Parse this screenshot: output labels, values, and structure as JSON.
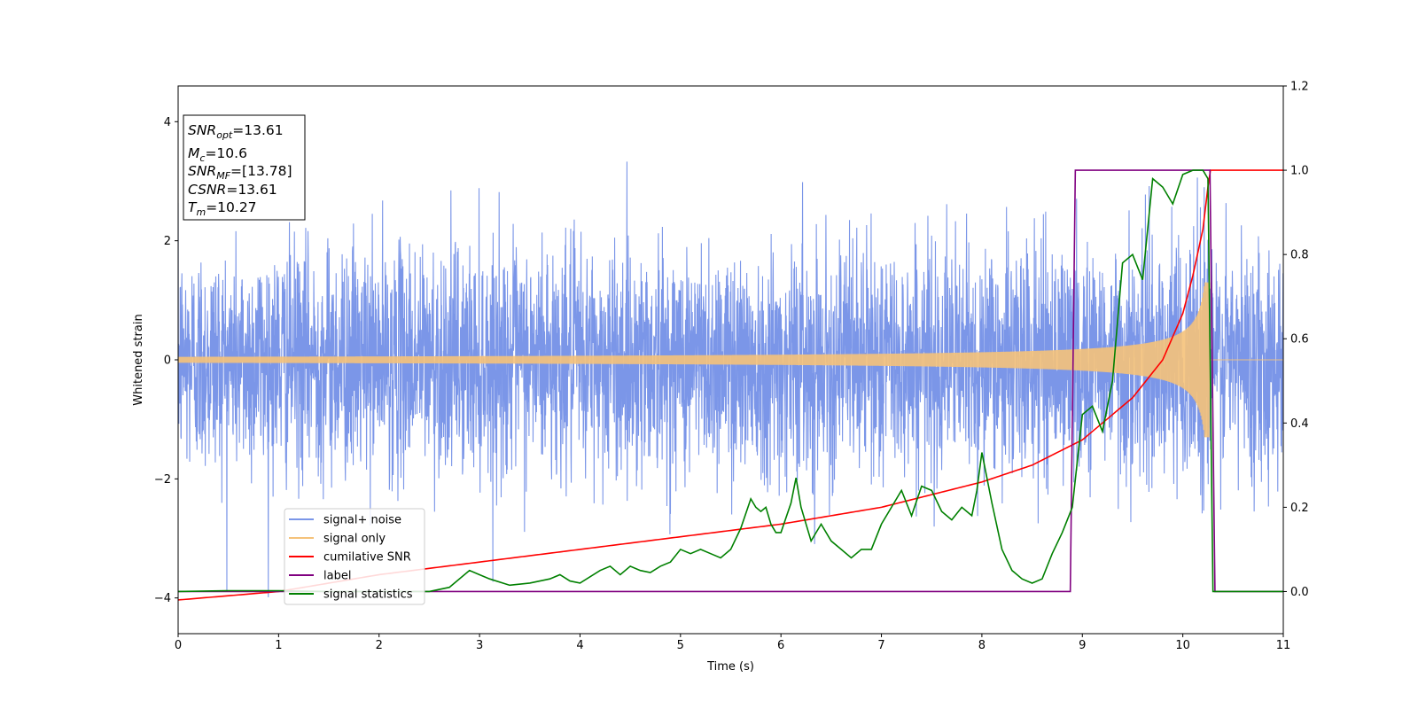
{
  "chart_data": {
    "type": "line",
    "xlabel": "Time (s)",
    "ylabel": "Whitened strain",
    "xlim": [
      0,
      11
    ],
    "ylim_left": [
      -4.6,
      4.6
    ],
    "ylim_right": [
      -0.1,
      1.2
    ],
    "x_ticks": [
      "0",
      "1",
      "2",
      "3",
      "4",
      "5",
      "6",
      "7",
      "8",
      "9",
      "10",
      "11"
    ],
    "y_left_ticks": [
      "−4",
      "−2",
      "0",
      "2",
      "4"
    ],
    "y_right_ticks": [
      "0.0",
      "0.2",
      "0.4",
      "0.6",
      "0.8",
      "1.0",
      "1.2"
    ],
    "grid": false,
    "legend_position": "lower-left",
    "annotation": {
      "lines": [
        {
          "base": "SNR",
          "sub": "opt",
          "value": "=13.61"
        },
        {
          "base": "M",
          "sub": "c",
          "value": "=10.6"
        },
        {
          "base": "SNR",
          "sub": "MF",
          "value": "=[13.78]"
        },
        {
          "base": "CSNR",
          "sub": "",
          "value": "=13.61"
        },
        {
          "base": "T",
          "sub": "m",
          "value": "=10.27"
        }
      ]
    },
    "series": [
      {
        "name": "signal+ noise",
        "axis": "left",
        "color": "#7b96e8",
        "description_values": {
          "noise_std": 1.0,
          "envelope_peak": 3.2,
          "x_range": [
            0,
            11
          ]
        }
      },
      {
        "name": "signal only",
        "axis": "left",
        "color": "#f5c27a",
        "chirp": {
          "t_merge": 10.27,
          "amp_start": 0.05,
          "amp_peak": 1.3
        }
      },
      {
        "name": "cumilative SNR",
        "axis": "right",
        "color": "#ff0000",
        "x": [
          0,
          1,
          2,
          3,
          4,
          5,
          6,
          7,
          8,
          8.5,
          9,
          9.5,
          9.8,
          10,
          10.1,
          10.2,
          10.27,
          10.3,
          11
        ],
        "values": [
          -0.02,
          0.0,
          0.04,
          0.07,
          0.1,
          0.13,
          0.16,
          0.2,
          0.26,
          0.3,
          0.36,
          0.46,
          0.55,
          0.66,
          0.75,
          0.86,
          1.0,
          1.0,
          1.0
        ]
      },
      {
        "name": "label",
        "axis": "right",
        "color": "#800080",
        "x": [
          0,
          8.88,
          8.93,
          10.27,
          10.32,
          11
        ],
        "values": [
          0,
          0,
          1,
          1,
          0,
          0
        ]
      },
      {
        "name": "signal statistics",
        "axis": "right",
        "color": "#008000",
        "x": [
          0,
          0.5,
          1,
          1.5,
          2,
          2.5,
          2.7,
          2.9,
          3.0,
          3.1,
          3.3,
          3.5,
          3.7,
          3.8,
          3.9,
          4.0,
          4.2,
          4.3,
          4.4,
          4.5,
          4.6,
          4.7,
          4.8,
          4.9,
          5.0,
          5.1,
          5.2,
          5.3,
          5.4,
          5.5,
          5.6,
          5.7,
          5.75,
          5.8,
          5.85,
          5.9,
          5.95,
          6.0,
          6.1,
          6.15,
          6.2,
          6.3,
          6.4,
          6.5,
          6.6,
          6.7,
          6.8,
          6.9,
          7.0,
          7.1,
          7.2,
          7.3,
          7.4,
          7.5,
          7.6,
          7.7,
          7.8,
          7.9,
          7.95,
          8.0,
          8.1,
          8.2,
          8.3,
          8.4,
          8.5,
          8.6,
          8.7,
          8.8,
          8.9,
          9.0,
          9.1,
          9.2,
          9.3,
          9.4,
          9.5,
          9.6,
          9.7,
          9.75,
          9.8,
          9.9,
          10.0,
          10.1,
          10.2,
          10.25,
          10.3,
          10.4,
          10.6,
          10.8,
          11
        ],
        "values": [
          0.0,
          0.002,
          0.002,
          0.0,
          0.0,
          0.0,
          0.01,
          0.05,
          0.04,
          0.03,
          0.015,
          0.02,
          0.03,
          0.04,
          0.025,
          0.02,
          0.05,
          0.06,
          0.04,
          0.06,
          0.05,
          0.045,
          0.06,
          0.07,
          0.1,
          0.09,
          0.1,
          0.09,
          0.08,
          0.1,
          0.15,
          0.22,
          0.2,
          0.19,
          0.2,
          0.16,
          0.14,
          0.14,
          0.21,
          0.27,
          0.2,
          0.12,
          0.16,
          0.12,
          0.1,
          0.08,
          0.1,
          0.1,
          0.16,
          0.2,
          0.24,
          0.18,
          0.25,
          0.24,
          0.19,
          0.17,
          0.2,
          0.18,
          0.24,
          0.33,
          0.21,
          0.1,
          0.05,
          0.03,
          0.02,
          0.03,
          0.09,
          0.14,
          0.2,
          0.42,
          0.44,
          0.38,
          0.5,
          0.78,
          0.8,
          0.74,
          0.98,
          0.97,
          0.96,
          0.92,
          0.99,
          1.0,
          1.0,
          0.98,
          0.0,
          0.0,
          0.0,
          0.0,
          0.0
        ]
      }
    ]
  }
}
